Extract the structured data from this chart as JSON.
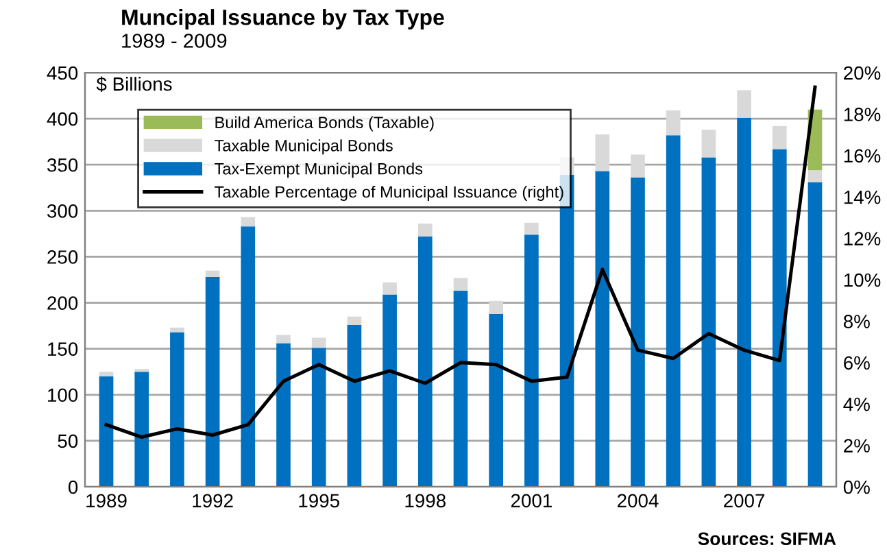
{
  "chart_data": {
    "type": "bar",
    "stacked": true,
    "title": "Muncipal Issuance by Tax Type",
    "subtitle": "1989 - 2009",
    "ylabel": "$ Billions",
    "categories": [
      "1989",
      null,
      null,
      "1992",
      null,
      null,
      "1995",
      null,
      null,
      "1998",
      null,
      null,
      "2001",
      null,
      null,
      "2004",
      null,
      null,
      "2007",
      null,
      null
    ],
    "series": [
      {
        "name": "Tax-Exempt Municipal Bonds",
        "color": "#0070c0",
        "values": [
          120,
          125,
          168,
          228,
          283,
          156,
          151,
          176,
          209,
          272,
          213,
          188,
          274,
          339,
          343,
          336,
          382,
          358,
          401,
          367,
          331
        ]
      },
      {
        "name": "Taxable Municipal Bonds",
        "color": "#d9d9d9",
        "values": [
          5,
          3,
          5,
          7,
          10,
          9,
          11,
          9,
          13,
          14,
          14,
          14,
          13,
          19,
          40,
          25,
          27,
          30,
          30,
          25,
          13
        ]
      },
      {
        "name": "Build America Bonds (Taxable)",
        "color": "#9bbb59",
        "values": [
          null,
          null,
          null,
          null,
          null,
          null,
          null,
          null,
          null,
          null,
          null,
          null,
          null,
          null,
          null,
          null,
          null,
          null,
          null,
          null,
          66
        ]
      },
      {
        "name": "Taxable Percentage of Municipal Issuance (right)",
        "type": "line",
        "axis": "y2",
        "color": "#000000",
        "values": [
          3.0,
          2.4,
          2.8,
          2.5,
          3.0,
          5.1,
          5.9,
          5.1,
          5.6,
          5.0,
          6.0,
          5.9,
          5.1,
          5.3,
          10.5,
          6.6,
          6.2,
          7.4,
          6.6,
          6.1,
          19.3
        ]
      }
    ],
    "ylim": [
      0,
      450
    ],
    "yticks": [
      0,
      50,
      100,
      150,
      200,
      250,
      300,
      350,
      400,
      450
    ],
    "y2lim": [
      0,
      20
    ],
    "y2ticks": [
      {
        "value": 0,
        "label": "0%"
      },
      {
        "value": 2,
        "label": "2%"
      },
      {
        "value": 4,
        "label": "4%"
      },
      {
        "value": 6,
        "label": "6%"
      },
      {
        "value": 8,
        "label": "8%"
      },
      {
        "value": 10,
        "label": "10%"
      },
      {
        "value": 12,
        "label": "12%"
      },
      {
        "value": 14,
        "label": "14%"
      },
      {
        "value": 16,
        "label": "16%"
      },
      {
        "value": 18,
        "label": "18%"
      },
      {
        "value": 20,
        "label": "20%"
      }
    ],
    "grid": "y",
    "legend": "top left",
    "marker": "none",
    "line_style": "solid",
    "annotations": [
      "Sources: SIFMA"
    ]
  }
}
